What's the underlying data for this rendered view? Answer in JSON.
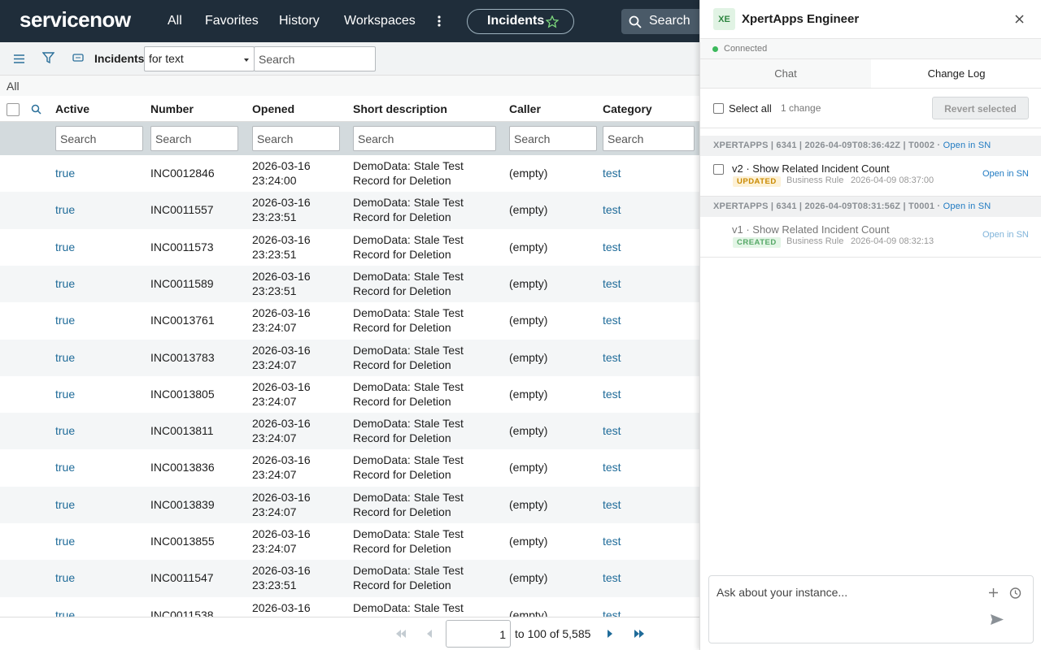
{
  "nav": {
    "logo": "servicenow",
    "items": [
      "All",
      "Favorites",
      "History",
      "Workspaces"
    ],
    "pill": "Incidents",
    "search": "Search"
  },
  "list": {
    "title": "Incidents",
    "filter": "for text",
    "search_placeholder": "Search",
    "breadcrumb": "All",
    "columns": [
      "Active",
      "Number",
      "Opened",
      "Short description",
      "Caller",
      "Category"
    ],
    "column_search": [
      "Search",
      "Search",
      "Search",
      "Search",
      "Search",
      "Search"
    ],
    "rows": [
      [
        "true",
        "INC0012846",
        "2026-03-16 23:24:00",
        "DemoData: Stale Test Record for Deletion",
        "(empty)",
        "test"
      ],
      [
        "true",
        "INC0011557",
        "2026-03-16 23:23:51",
        "DemoData: Stale Test Record for Deletion",
        "(empty)",
        "test"
      ],
      [
        "true",
        "INC0011573",
        "2026-03-16 23:23:51",
        "DemoData: Stale Test Record for Deletion",
        "(empty)",
        "test"
      ],
      [
        "true",
        "INC0011589",
        "2026-03-16 23:23:51",
        "DemoData: Stale Test Record for Deletion",
        "(empty)",
        "test"
      ],
      [
        "true",
        "INC0013761",
        "2026-03-16 23:24:07",
        "DemoData: Stale Test Record for Deletion",
        "(empty)",
        "test"
      ],
      [
        "true",
        "INC0013783",
        "2026-03-16 23:24:07",
        "DemoData: Stale Test Record for Deletion",
        "(empty)",
        "test"
      ],
      [
        "true",
        "INC0013805",
        "2026-03-16 23:24:07",
        "DemoData: Stale Test Record for Deletion",
        "(empty)",
        "test"
      ],
      [
        "true",
        "INC0013811",
        "2026-03-16 23:24:07",
        "DemoData: Stale Test Record for Deletion",
        "(empty)",
        "test"
      ],
      [
        "true",
        "INC0013836",
        "2026-03-16 23:24:07",
        "DemoData: Stale Test Record for Deletion",
        "(empty)",
        "test"
      ],
      [
        "true",
        "INC0013839",
        "2026-03-16 23:24:07",
        "DemoData: Stale Test Record for Deletion",
        "(empty)",
        "test"
      ],
      [
        "true",
        "INC0013855",
        "2026-03-16 23:24:07",
        "DemoData: Stale Test Record for Deletion",
        "(empty)",
        "test"
      ],
      [
        "true",
        "INC0011547",
        "2026-03-16 23:23:51",
        "DemoData: Stale Test Record for Deletion",
        "(empty)",
        "test"
      ],
      [
        "true",
        "INC0011538",
        "2026-03-16",
        "DemoData: Stale Test",
        "(empty)",
        "test"
      ]
    ],
    "pagination": {
      "page": "1",
      "text": "to 100 of 5,585"
    }
  },
  "panel": {
    "avatar": "XE",
    "title": "XpertApps Engineer",
    "status": "Connected",
    "tabs": [
      "Chat",
      "Change Log"
    ],
    "select_all": "Select all",
    "count": "1 change",
    "revert": "Revert selected",
    "groups": [
      {
        "header": "XPERTAPPS | 6341 | 2026-04-09T08:36:42Z | T0002 ·",
        "link": "Open in SN",
        "item": {
          "title": "v2 · Show Related Incident Count",
          "badge": "UPDATED",
          "type": "Business Rule",
          "date": "2026-04-09 08:37:00",
          "link": "Open in SN"
        }
      },
      {
        "header": "XPERTAPPS | 6341 | 2026-04-09T08:31:56Z | T0001 ·",
        "link": "Open in SN",
        "item": {
          "title": "v1 · Show Related Incident Count",
          "badge": "CREATED",
          "type": "Business Rule",
          "date": "2026-04-09 08:32:13",
          "link": "Open in SN"
        }
      }
    ],
    "input_placeholder": "Ask about your instance..."
  }
}
